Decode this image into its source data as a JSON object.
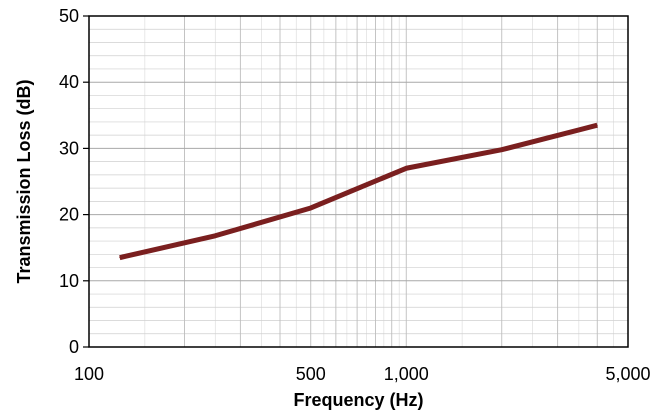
{
  "chart_data": {
    "type": "line",
    "xlabel": "Frequency (Hz)",
    "ylabel": "Transmission Loss (dB)",
    "x_scale": "log",
    "xlim": [
      100,
      5000
    ],
    "ylim": [
      0,
      50
    ],
    "grid": true,
    "x_ticks": [
      {
        "value": 100,
        "label": "100"
      },
      {
        "value": 500,
        "label": "500"
      },
      {
        "value": 1000,
        "label": "1,000"
      },
      {
        "value": 5000,
        "label": "5,000"
      }
    ],
    "y_ticks": [
      {
        "value": 0,
        "label": "0"
      },
      {
        "value": 10,
        "label": "10"
      },
      {
        "value": 20,
        "label": "20"
      },
      {
        "value": 30,
        "label": "30"
      },
      {
        "value": 40,
        "label": "40"
      },
      {
        "value": 50,
        "label": "50"
      }
    ],
    "series": [
      {
        "color": "#7a1f1f",
        "points": [
          {
            "x": 125,
            "y": 13.5
          },
          {
            "x": 250,
            "y": 16.8
          },
          {
            "x": 500,
            "y": 21
          },
          {
            "x": 1000,
            "y": 27
          },
          {
            "x": 2000,
            "y": 29.8
          },
          {
            "x": 4000,
            "y": 33.5
          }
        ]
      }
    ]
  }
}
